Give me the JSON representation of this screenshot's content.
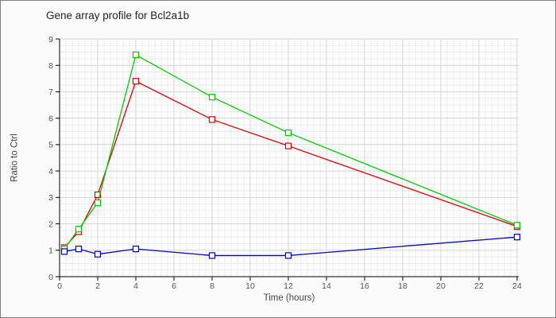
{
  "window": {
    "background": "#fbfbfb",
    "border_color": "#818181"
  },
  "chart_data": {
    "type": "line",
    "title": "Gene array profile for Bcl2a1b",
    "xlabel": "Time (hours)",
    "ylabel": "Ratio to Ctrl",
    "xlim": [
      0,
      24
    ],
    "ylim": [
      0,
      9
    ],
    "x_ticks": [
      0,
      2,
      4,
      6,
      8,
      10,
      12,
      14,
      16,
      18,
      20,
      22,
      24
    ],
    "y_ticks": [
      0,
      1,
      2,
      3,
      4,
      5,
      6,
      7,
      8,
      9
    ],
    "grid": {
      "major": true,
      "minor": true
    },
    "legend": "none",
    "marker": "open-square",
    "x": [
      0.25,
      1,
      2,
      4,
      8,
      12,
      24
    ],
    "series": [
      {
        "name": "red",
        "color": "#dd0000",
        "values": [
          1.1,
          1.7,
          3.1,
          7.4,
          5.95,
          4.95,
          1.9
        ]
      },
      {
        "name": "green",
        "color": "#00cc00",
        "values": [
          1.05,
          1.8,
          2.8,
          8.4,
          6.8,
          5.45,
          1.95
        ]
      },
      {
        "name": "blue",
        "color": "#0000cc",
        "values": [
          0.95,
          1.05,
          0.85,
          1.05,
          0.8,
          0.8,
          1.5
        ]
      }
    ],
    "colors": {
      "axis": "#000000",
      "tick_label": "#555555",
      "grid_major": "#d5d5d5",
      "grid_minor": "#ebebeb",
      "plot_bg": "#fdfdfd",
      "marker_fill": "#ffffff"
    }
  }
}
